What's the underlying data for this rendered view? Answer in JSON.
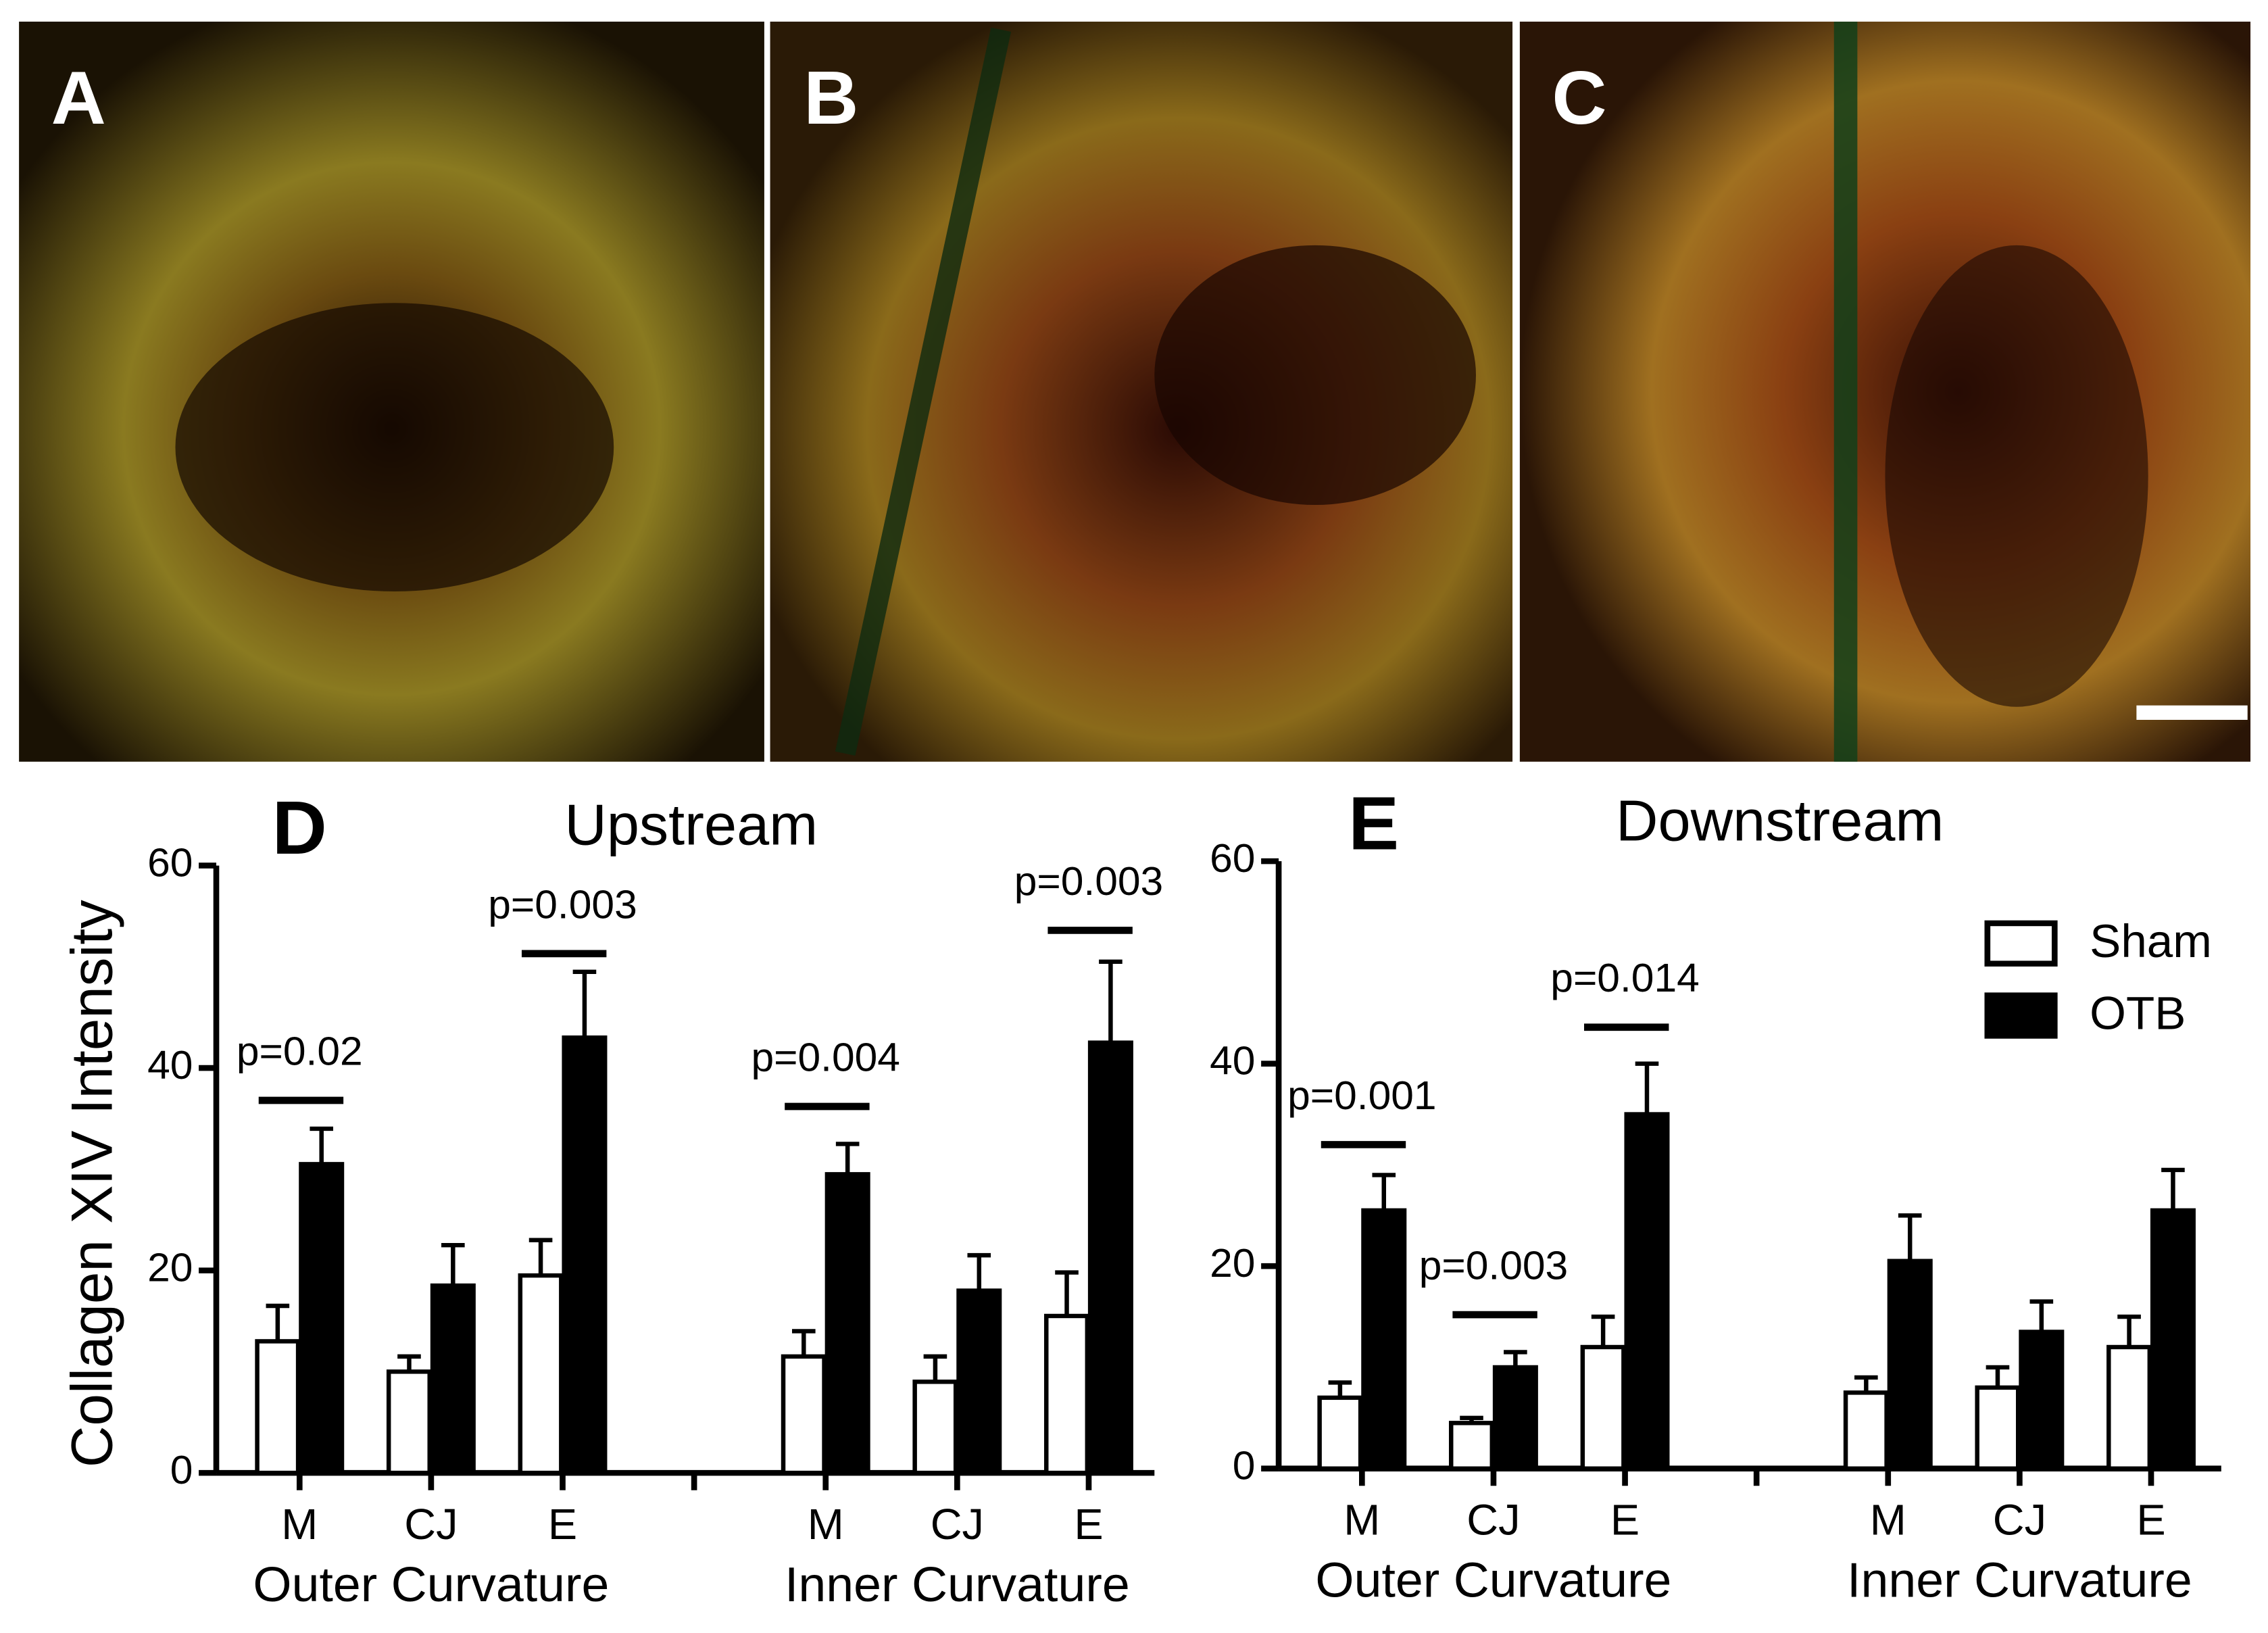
{
  "image_panels": {
    "labels": [
      "A",
      "B",
      "C"
    ]
  },
  "chart_data": [
    {
      "type": "bar",
      "panel_label": "D",
      "title": "Upstream",
      "y_label": "Collagen XIV Intensity",
      "categories": [
        "M",
        "CJ",
        "E",
        "M",
        "CJ",
        "E"
      ],
      "groups": [
        "Outer Curvature",
        "Inner Curvature"
      ],
      "ylim": [
        0,
        60
      ],
      "yticks": [
        0,
        20,
        40,
        60
      ],
      "series": [
        {
          "name": "Sham",
          "color": "#ffffff",
          "values": [
            13,
            10,
            19.5,
            11.5,
            9,
            15.5
          ],
          "errors": [
            3.5,
            1.5,
            3.5,
            2.5,
            2.5,
            4.3
          ]
        },
        {
          "name": "OTB",
          "color": "#000000",
          "values": [
            30.5,
            18.5,
            43,
            29.5,
            18,
            42.5
          ],
          "errors": [
            3.5,
            4,
            6.5,
            3,
            3.5,
            8
          ]
        }
      ],
      "p_values": [
        "p=0.02",
        null,
        "p=0.003",
        "p=0.004",
        null,
        "p=0.003"
      ],
      "p_bar_y": [
        36.8,
        null,
        51.3,
        36.2,
        null,
        53.6
      ],
      "legend": false
    },
    {
      "type": "bar",
      "panel_label": "E",
      "title": "Downstream",
      "categories": [
        "M",
        "CJ",
        "E",
        "M",
        "CJ",
        "E"
      ],
      "groups": [
        "Outer Curvature",
        "Inner Curvature"
      ],
      "ylim": [
        0,
        60
      ],
      "yticks": [
        0,
        20,
        40,
        60
      ],
      "series": [
        {
          "name": "Sham",
          "color": "#ffffff",
          "values": [
            7,
            4.5,
            12,
            7.5,
            8,
            12
          ],
          "errors": [
            1.5,
            0.5,
            3,
            1.5,
            2,
            3
          ]
        },
        {
          "name": "OTB",
          "color": "#000000",
          "values": [
            25.5,
            10,
            35,
            20.5,
            13.5,
            25.5
          ],
          "errors": [
            3.5,
            1.5,
            5,
            4.5,
            3,
            4
          ]
        }
      ],
      "p_values": [
        "p=0.001",
        "p=0.003",
        "p=0.014",
        null,
        null,
        null
      ],
      "p_bar_y": [
        32,
        15.2,
        43.6,
        null,
        null,
        null
      ],
      "legend": true
    }
  ]
}
